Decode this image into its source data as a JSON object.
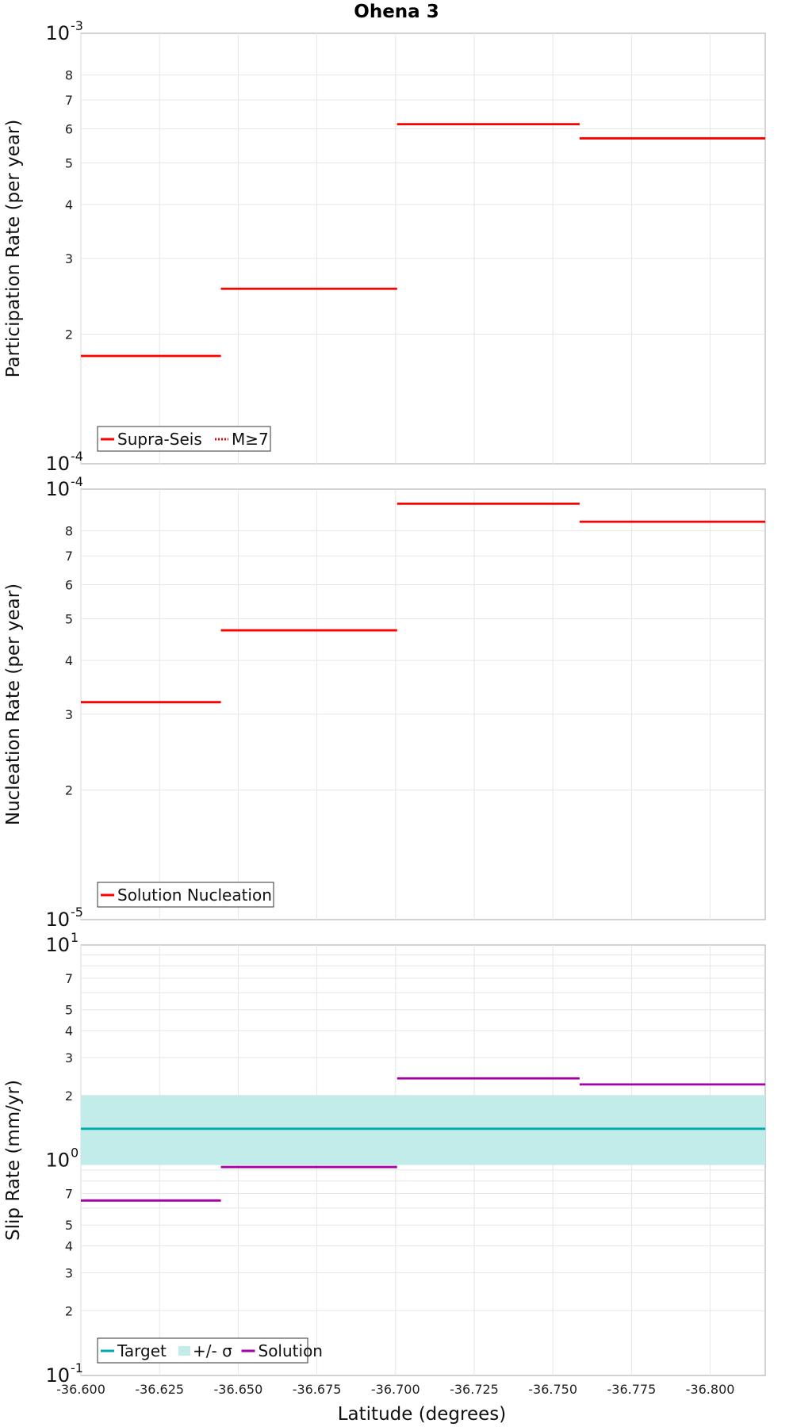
{
  "title": "Ohena 3",
  "xlabel": "Latitude (degrees)",
  "x_ticks": [
    "-36.600",
    "-36.625",
    "-36.650",
    "-36.675",
    "-36.700",
    "-36.725",
    "-36.750",
    "-36.775",
    "-36.800"
  ],
  "chart_data": [
    {
      "type": "line",
      "ylabel": "Participation Rate (per year)",
      "yscale": "log",
      "ylim": [
        0.0001,
        0.001
      ],
      "xlim": [
        -36.6,
        -36.8175
      ],
      "x_reversed": true,
      "major_ticks": [
        {
          "base": "10",
          "exp": "-4"
        },
        {
          "base": "10",
          "exp": "-3"
        }
      ],
      "minor_ticks": [
        "2",
        "3",
        "4",
        "5",
        "6",
        "7",
        "8"
      ],
      "legend_position": "bottom-left",
      "legend": [
        {
          "label": "Supra-Seis",
          "color": "#ff0000",
          "style": "solid"
        },
        {
          "label": "M≥7",
          "color": "#ff0000",
          "style": "dotted"
        }
      ],
      "series": [
        {
          "name": "Supra-Seis",
          "color": "#ff0000",
          "style": "solid",
          "segments": [
            {
              "x": [
                -36.6,
                -36.6445
              ],
              "y": 0.000178
            },
            {
              "x": [
                -36.6445,
                -36.7005
              ],
              "y": 0.000255
            },
            {
              "x": [
                -36.7005,
                -36.7585
              ],
              "y": 0.000615
            },
            {
              "x": [
                -36.7585,
                -36.8175
              ],
              "y": 0.00057
            }
          ]
        },
        {
          "name": "M≥7",
          "color": "#ff0000",
          "style": "dotted",
          "segments": [
            {
              "x": [
                -36.6,
                -36.6445
              ],
              "y": 0.000178
            },
            {
              "x": [
                -36.6445,
                -36.7005
              ],
              "y": 0.000255
            },
            {
              "x": [
                -36.7005,
                -36.7585
              ],
              "y": 0.000615
            },
            {
              "x": [
                -36.7585,
                -36.8175
              ],
              "y": 0.00057
            }
          ]
        }
      ]
    },
    {
      "type": "line",
      "ylabel": "Nucleation Rate (per year)",
      "yscale": "log",
      "ylim": [
        1e-05,
        0.0001
      ],
      "xlim": [
        -36.6,
        -36.8175
      ],
      "x_reversed": true,
      "major_ticks": [
        {
          "base": "10",
          "exp": "-5"
        },
        {
          "base": "10",
          "exp": "-4"
        }
      ],
      "minor_ticks": [
        "2",
        "3",
        "4",
        "5",
        "6",
        "7",
        "8"
      ],
      "legend_position": "bottom-left",
      "legend": [
        {
          "label": "Solution Nucleation",
          "color": "#ff0000",
          "style": "solid"
        }
      ],
      "series": [
        {
          "name": "Solution Nucleation",
          "color": "#ff0000",
          "style": "solid",
          "segments": [
            {
              "x": [
                -36.6,
                -36.6445
              ],
              "y": 3.2e-05
            },
            {
              "x": [
                -36.6445,
                -36.7005
              ],
              "y": 4.7e-05
            },
            {
              "x": [
                -36.7005,
                -36.7585
              ],
              "y": 9.25e-05
            },
            {
              "x": [
                -36.7585,
                -36.8175
              ],
              "y": 8.4e-05
            }
          ]
        }
      ]
    },
    {
      "type": "line",
      "ylabel": "Slip Rate (mm/yr)",
      "yscale": "log",
      "ylim": [
        0.1,
        10
      ],
      "xlim": [
        -36.6,
        -36.8175
      ],
      "x_reversed": true,
      "major_ticks": [
        {
          "base": "10",
          "exp": "-1"
        },
        {
          "base": "10",
          "exp": "0"
        },
        {
          "base": "10",
          "exp": "1"
        }
      ],
      "minor_ticks_per_decade": [
        "2",
        "3",
        "4",
        "5",
        "7"
      ],
      "legend_position": "bottom-left",
      "legend": [
        {
          "label": "Target",
          "color": "#00aaaa",
          "style": "solid"
        },
        {
          "label": "+/- σ",
          "color": "#c2ecea",
          "style": "band"
        },
        {
          "label": "Solution",
          "color": "#a600a6",
          "style": "solid"
        }
      ],
      "band": {
        "name": "+/- σ",
        "color": "#c2ecea",
        "y_low": 0.95,
        "y_high": 2.0
      },
      "series": [
        {
          "name": "Target",
          "color": "#00aaaa",
          "style": "solid",
          "segments": [
            {
              "x": [
                -36.6,
                -36.8175
              ],
              "y": 1.4
            }
          ]
        },
        {
          "name": "Solution",
          "color": "#a600a6",
          "style": "solid",
          "segments": [
            {
              "x": [
                -36.6,
                -36.6445
              ],
              "y": 0.65
            },
            {
              "x": [
                -36.6445,
                -36.7005
              ],
              "y": 0.93
            },
            {
              "x": [
                -36.7005,
                -36.7585
              ],
              "y": 2.4
            },
            {
              "x": [
                -36.7585,
                -36.8175
              ],
              "y": 2.25
            }
          ]
        }
      ]
    }
  ]
}
